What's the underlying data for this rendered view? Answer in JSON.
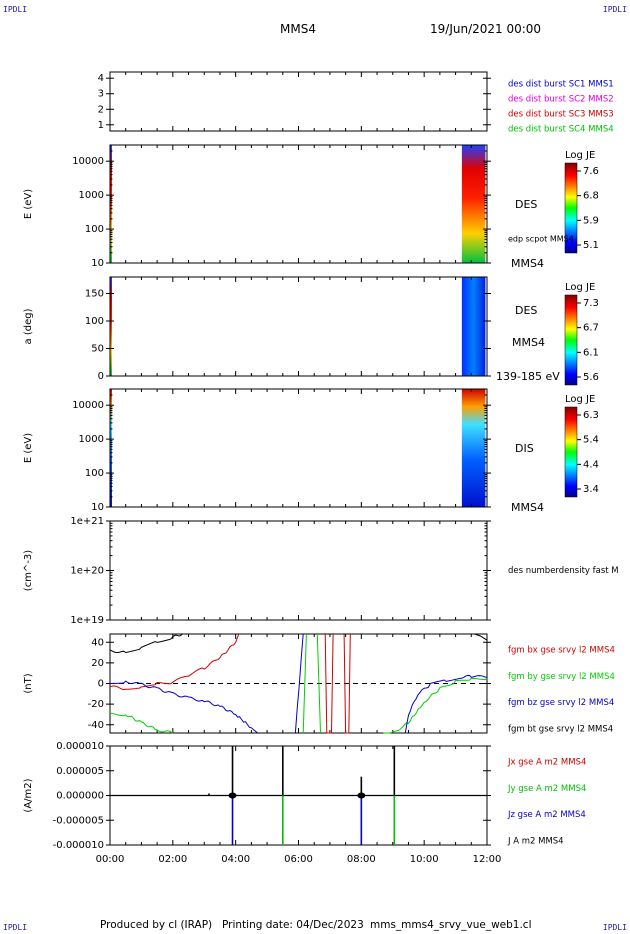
{
  "header": {
    "corner_labels": [
      "IPDLI",
      "IPDLI",
      "IPDLI",
      "IPDLI"
    ],
    "spacecraft": "MMS4",
    "date": "19/Jun/2021 00:00"
  },
  "footer": {
    "produced_by": "Produced by cl (IRAP)",
    "printing_date": "Printing date: 04/Dec/2023",
    "file": "mms_mms4_srvy_vue_web1.cl"
  },
  "colors": {
    "mms1": "#0000d0",
    "mms2": "#e000e0",
    "mms3": "#d00000",
    "mms4": "#00c000",
    "bx": "#d00000",
    "by": "#00d000",
    "bz": "#0000d0",
    "bt": "#000000"
  },
  "chart_data": {
    "type": "multi-panel time series",
    "x_range_hours": [
      0,
      12
    ],
    "x_tick_labels": [
      "00:00",
      "02:00",
      "04:00",
      "06:00",
      "08:00",
      "10:00",
      "12:00"
    ],
    "panels": [
      {
        "id": "burst",
        "type": "line",
        "ylabel": "",
        "ylim": [
          0.6,
          4.4
        ],
        "y_ticks": [
          1,
          2,
          3,
          4
        ],
        "y_tick_labels": [
          "1",
          "2",
          "3",
          "4"
        ],
        "legend": [
          {
            "text": "des dist burst SC1 MMS1",
            "color": "#0000d0"
          },
          {
            "text": "des dist burst SC2 MMS2",
            "color": "#e000e0"
          },
          {
            "text": "des dist burst SC3 MMS3",
            "color": "#d00000"
          },
          {
            "text": "des dist burst SC4 MMS4",
            "color": "#00c000"
          }
        ]
      },
      {
        "id": "des_energy",
        "type": "heatmap",
        "ylabel": "E (eV)",
        "yscale": "log",
        "ylim": [
          10,
          30000
        ],
        "y_ticks": [
          10,
          100,
          1000,
          10000
        ],
        "y_tick_labels": [
          "10",
          "100",
          "1000",
          "10000"
        ],
        "label": "DES",
        "sublabel": "edp scpot MMS4",
        "bottom_label": "MMS4",
        "colorbar": {
          "title": "Log JE",
          "ticks": [
            "7.6",
            "6.8",
            "5.9",
            "5.1"
          ]
        },
        "data_intervals_hours": [
          [
            0.0,
            0.05
          ],
          [
            11.2,
            11.95
          ]
        ]
      },
      {
        "id": "des_pitch",
        "type": "heatmap",
        "ylabel": "a (deg)",
        "ylim": [
          0,
          180
        ],
        "y_ticks": [
          0,
          50,
          100,
          150
        ],
        "y_tick_labels": [
          "0",
          "50",
          "100",
          "150"
        ],
        "label": "DES",
        "sublabel": "MMS4",
        "bottom_label": "139-185 eV",
        "colorbar": {
          "title": "Log JE",
          "ticks": [
            "7.3",
            "6.7",
            "6.1",
            "5.6"
          ]
        },
        "data_intervals_hours": [
          [
            0.0,
            0.05
          ],
          [
            11.2,
            11.95
          ]
        ]
      },
      {
        "id": "dis_energy",
        "type": "heatmap",
        "ylabel": "E (eV)",
        "yscale": "log",
        "ylim": [
          10,
          30000
        ],
        "y_ticks": [
          10,
          100,
          1000,
          10000
        ],
        "y_tick_labels": [
          "10",
          "100",
          "1000",
          "10000"
        ],
        "label": "DIS",
        "bottom_label": "MMS4",
        "colorbar": {
          "title": "Log JE",
          "ticks": [
            "6.3",
            "5.4",
            "4.4",
            "3.4"
          ]
        },
        "data_intervals_hours": [
          [
            0.0,
            0.05
          ],
          [
            11.2,
            11.95
          ]
        ]
      },
      {
        "id": "density",
        "type": "line",
        "ylabel": "(cm^-3)",
        "yscale": "log",
        "ylim": [
          1e+19,
          1e+21
        ],
        "y_ticks": [
          1e+19,
          1e+20,
          1e+21
        ],
        "y_tick_labels": [
          "1e+19",
          "1e+20",
          "1e+21"
        ],
        "legend": [
          {
            "text": "des numberdensity fast M",
            "color": "#000000"
          }
        ]
      },
      {
        "id": "bfield",
        "type": "line",
        "ylabel": "(nT)",
        "ylim": [
          -48,
          48
        ],
        "y_ticks": [
          -40,
          -20,
          0,
          20,
          40
        ],
        "y_tick_labels": [
          "-40",
          "-20",
          "0",
          "20",
          "40"
        ],
        "legend": [
          {
            "text": "fgm bx gse srvy l2 MMS4",
            "color": "#d00000"
          },
          {
            "text": "fgm by gse srvy l2 MMS4",
            "color": "#00d000"
          },
          {
            "text": "fgm bz gse srvy l2 MMS4",
            "color": "#0000d0"
          },
          {
            "text": "fgm bt gse srvy l2 MMS4",
            "color": "#000000"
          }
        ],
        "series": [
          {
            "name": "fgm bt gse srvy l2 MMS4",
            "color": "#000000",
            "segments": [
              [
                [
                  0,
                  32
                ],
                [
                  0.5,
                  30
                ],
                [
                  1,
                  35
                ],
                [
                  1.5,
                  40
                ],
                [
                  2,
                  45
                ],
                [
                  2.3,
                  48
                ]
              ],
              [
                [
                  11.6,
                  48
                ],
                [
                  11.8,
                  46
                ],
                [
                  12,
                  42
                ]
              ]
            ]
          },
          {
            "name": "fgm bx gse srvy l2 MMS4",
            "color": "#d00000",
            "segments": [
              [
                [
                  0,
                  -3
                ],
                [
                  0.5,
                  -5
                ],
                [
                  1,
                  -3
                ],
                [
                  1.5,
                  0
                ],
                [
                  2,
                  1
                ],
                [
                  2.5,
                  8
                ],
                [
                  3,
                  15
                ],
                [
                  3.5,
                  25
                ],
                [
                  4,
                  40
                ],
                [
                  4.1,
                  48
                ]
              ],
              [
                [
                  6.85,
                  48
                ],
                [
                  6.9,
                  -48
                ],
                [
                  7.05,
                  -48
                ],
                [
                  7.1,
                  48
                ]
              ],
              [
                [
                  7.45,
                  48
                ],
                [
                  7.5,
                  -48
                ],
                [
                  7.6,
                  -48
                ],
                [
                  7.65,
                  48
                ]
              ]
            ]
          },
          {
            "name": "fgm by gse srvy l2 MMS4",
            "color": "#00d000",
            "segments": [
              [
                [
                  0,
                  -30
                ],
                [
                  0.5,
                  -30
                ],
                [
                  1,
                  -38
                ],
                [
                  1.5,
                  -45
                ],
                [
                  2,
                  -48
                ]
              ],
              [
                [
                  6.15,
                  -48
                ],
                [
                  6.25,
                  48
                ]
              ],
              [
                [
                  6.6,
                  48
                ],
                [
                  6.7,
                  -48
                ]
              ],
              [
                [
                  8.7,
                  -48
                ],
                [
                  9,
                  -48
                ],
                [
                  9.5,
                  -38
                ],
                [
                  10,
                  -18
                ],
                [
                  10.5,
                  -5
                ],
                [
                  11,
                  2
                ],
                [
                  11.5,
                  4
                ],
                [
                  12,
                  5
                ]
              ]
            ]
          },
          {
            "name": "fgm bz gse srvy l2 MMS4",
            "color": "#0000d0",
            "segments": [
              [
                [
                  0,
                  0
                ],
                [
                  0.5,
                  2
                ],
                [
                  1,
                  -1
                ],
                [
                  1.5,
                  -5
                ],
                [
                  2,
                  -10
                ],
                [
                  2.5,
                  -14
                ],
                [
                  3,
                  -17
                ],
                [
                  3.5,
                  -22
                ],
                [
                  4,
                  -30
                ],
                [
                  4.5,
                  -43
                ],
                [
                  4.7,
                  -48
                ]
              ],
              [
                [
                  5.9,
                  -48
                ],
                [
                  6.15,
                  48
                ]
              ],
              [
                [
                  9.4,
                  -48
                ],
                [
                  9.5,
                  -30
                ],
                [
                  9.8,
                  -10
                ],
                [
                  10.2,
                  -1
                ],
                [
                  10.7,
                  3
                ],
                [
                  11.2,
                  6
                ],
                [
                  11.5,
                  7
                ],
                [
                  12,
                  6
                ]
              ]
            ]
          }
        ]
      },
      {
        "id": "current",
        "type": "line",
        "ylabel": "(A/m2)",
        "ylim": [
          -1e-05,
          1e-05
        ],
        "y_ticks": [
          -1e-05,
          -5e-06,
          0,
          5e-06,
          1e-05
        ],
        "y_tick_labels": [
          "-0.000010",
          "-0.000005",
          "0.000000",
          "0.000005",
          "0.000010"
        ],
        "legend": [
          {
            "text": "Jx gse A m2 MMS4",
            "color": "#d00000"
          },
          {
            "text": "Jy gse A m2 MMS4",
            "color": "#00c000"
          },
          {
            "text": "Jz gse A m2 MMS4",
            "color": "#0000d0"
          },
          {
            "text": "J A m2 MMS4",
            "color": "#000000"
          }
        ],
        "spikes": [
          {
            "t": 3.15,
            "y": 4e-07,
            "color": "#000000"
          },
          {
            "t": 3.9,
            "y": -1e-05,
            "color": "#0000d0"
          },
          {
            "t": 3.9,
            "y": 1e-05,
            "color": "#000000"
          },
          {
            "t": 5.5,
            "y": -1e-05,
            "color": "#00c000"
          },
          {
            "t": 5.5,
            "y": 1e-05,
            "color": "#000000"
          },
          {
            "t": 8.0,
            "y": -1e-05,
            "color": "#0000d0"
          },
          {
            "t": 8.0,
            "y": 3.8e-06,
            "color": "#000000"
          },
          {
            "t": 9.05,
            "y": -1e-05,
            "color": "#00c000"
          },
          {
            "t": 9.05,
            "y": 1e-05,
            "color": "#000000"
          }
        ]
      }
    ]
  }
}
